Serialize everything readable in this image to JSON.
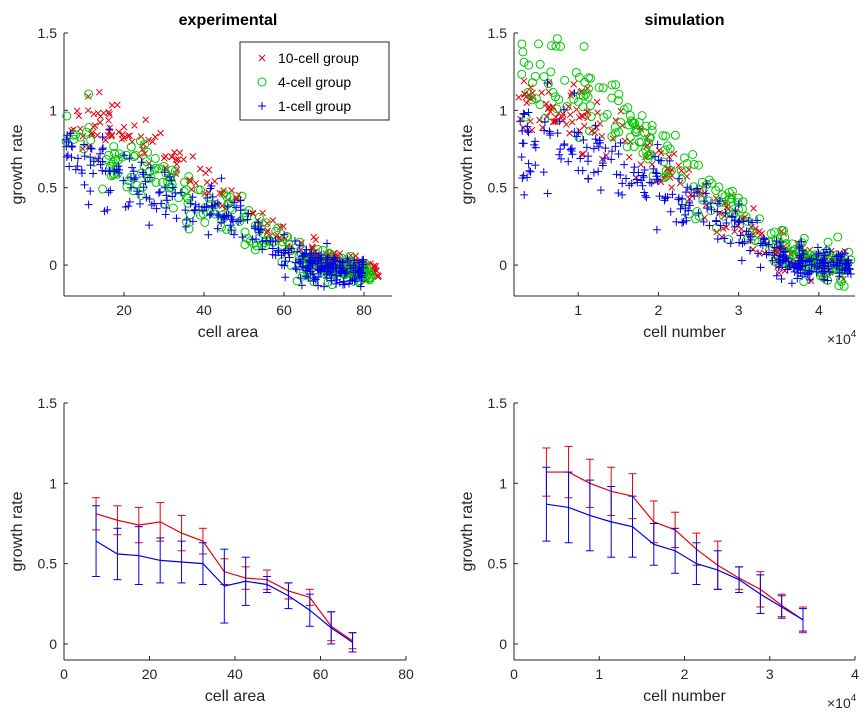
{
  "chart_data": [
    {
      "type": "scatter",
      "title": "experimental",
      "xlabel": "cell area",
      "ylabel": "growth rate",
      "xlim": [
        5,
        87
      ],
      "ylim": [
        -0.2,
        1.5
      ],
      "xticks": [
        20,
        40,
        60,
        80
      ],
      "yticks": [
        0,
        0.5,
        1,
        1.5
      ],
      "legend": "top-right",
      "grid": false,
      "series": [
        {
          "name": "10-cell group",
          "marker": "x",
          "color": "#e8000b",
          "trend": [
            [
              6,
              0.95
            ],
            [
              15,
              0.88
            ],
            [
              25,
              0.8
            ],
            [
              35,
              0.62
            ],
            [
              45,
              0.45
            ],
            [
              55,
              0.28
            ],
            [
              65,
              0.1
            ],
            [
              72,
              0.02
            ],
            [
              80,
              -0.02
            ],
            [
              84,
              -0.05
            ]
          ],
          "spread": 0.09
        },
        {
          "name": "4-cell group",
          "marker": "o",
          "color": "#00c800",
          "trend": [
            [
              5,
              0.95
            ],
            [
              12,
              0.75
            ],
            [
              25,
              0.62
            ],
            [
              35,
              0.45
            ],
            [
              45,
              0.35
            ],
            [
              55,
              0.2
            ],
            [
              65,
              0.02
            ],
            [
              72,
              -0.03
            ],
            [
              80,
              -0.04
            ],
            [
              82,
              -0.05
            ]
          ],
          "spread": 0.12
        },
        {
          "name": "1-cell group",
          "marker": "+",
          "color": "#0000e8",
          "trend": [
            [
              5,
              0.72
            ],
            [
              12,
              0.62
            ],
            [
              22,
              0.55
            ],
            [
              32,
              0.45
            ],
            [
              45,
              0.35
            ],
            [
              55,
              0.18
            ],
            [
              62,
              0.05
            ],
            [
              68,
              -0.02
            ],
            [
              74,
              -0.03
            ],
            [
              80,
              -0.04
            ]
          ],
          "spread": 0.14
        }
      ]
    },
    {
      "type": "scatter",
      "title": "simulation",
      "xlabel": "cell number",
      "ylabel": "growth rate",
      "x_multiplier": "×10^4",
      "xlim": [
        0.2,
        4.45
      ],
      "ylim": [
        -0.2,
        1.5
      ],
      "xticks": [
        1,
        2,
        3,
        4
      ],
      "yticks": [
        0,
        0.5,
        1,
        1.5
      ],
      "grid": false,
      "series": [
        {
          "name": "10-cell group",
          "marker": "x",
          "color": "#e8000b",
          "trend": [
            [
              0.25,
              1.05
            ],
            [
              0.8,
              0.98
            ],
            [
              1.5,
              0.82
            ],
            [
              2.2,
              0.58
            ],
            [
              2.8,
              0.32
            ],
            [
              3.3,
              0.15
            ],
            [
              3.7,
              0.04
            ],
            [
              4.0,
              0.01
            ],
            [
              4.35,
              0.0
            ]
          ],
          "spread": 0.12
        },
        {
          "name": "4-cell group",
          "marker": "o",
          "color": "#00c800",
          "trend": [
            [
              0.25,
              1.3
            ],
            [
              0.7,
              1.25
            ],
            [
              1.2,
              1.05
            ],
            [
              1.8,
              0.85
            ],
            [
              2.4,
              0.58
            ],
            [
              3.0,
              0.3
            ],
            [
              3.5,
              0.1
            ],
            [
              4.0,
              0.01
            ],
            [
              4.4,
              0.0
            ]
          ],
          "spread": 0.16
        },
        {
          "name": "1-cell group",
          "marker": "+",
          "color": "#0000e8",
          "trend": [
            [
              0.25,
              0.85
            ],
            [
              0.8,
              0.78
            ],
            [
              1.4,
              0.65
            ],
            [
              2.0,
              0.5
            ],
            [
              2.6,
              0.35
            ],
            [
              3.2,
              0.18
            ],
            [
              3.6,
              0.02
            ],
            [
              4.0,
              0.0
            ],
            [
              4.4,
              0.0
            ]
          ],
          "spread": 0.15
        }
      ]
    },
    {
      "type": "line",
      "xlabel": "cell area",
      "ylabel": "growth rate",
      "xlim": [
        0,
        80
      ],
      "ylim": [
        -0.1,
        1.5
      ],
      "xticks": [
        0,
        20,
        40,
        60,
        80
      ],
      "yticks": [
        0,
        0.5,
        1,
        1.5
      ],
      "x": [
        7.5,
        12.5,
        17.5,
        22.5,
        27.5,
        32.5,
        37.5,
        42.5,
        47.5,
        52.5,
        57.5,
        62.5,
        67.5
      ],
      "series": [
        {
          "color": "#e8000b",
          "values": [
            0.81,
            0.77,
            0.74,
            0.76,
            0.69,
            0.64,
            0.45,
            0.41,
            0.4,
            0.33,
            0.29,
            0.11,
            0.02
          ],
          "errors": [
            0.1,
            0.09,
            0.11,
            0.12,
            0.11,
            0.08,
            0.08,
            0.07,
            0.06,
            0.05,
            0.05,
            0.09,
            0.05
          ]
        },
        {
          "color": "#0000e8",
          "values": [
            0.64,
            0.56,
            0.55,
            0.52,
            0.51,
            0.5,
            0.36,
            0.39,
            0.37,
            0.3,
            0.21,
            0.1,
            0.01
          ],
          "errors": [
            0.22,
            0.16,
            0.18,
            0.14,
            0.13,
            0.13,
            0.23,
            0.15,
            0.05,
            0.08,
            0.1,
            0.1,
            0.06
          ]
        }
      ]
    },
    {
      "type": "line",
      "xlabel": "cell number",
      "ylabel": "growth rate",
      "x_multiplier": "×10^4",
      "xlim": [
        0,
        4
      ],
      "ylim": [
        -0.1,
        1.5
      ],
      "xticks": [
        0,
        1,
        2,
        3,
        4
      ],
      "yticks": [
        0,
        0.5,
        1,
        1.5
      ],
      "x": [
        0.38,
        0.64,
        0.89,
        1.14,
        1.39,
        1.64,
        1.89,
        2.14,
        2.39,
        2.64,
        2.89,
        3.14,
        3.39
      ],
      "series": [
        {
          "color": "#e8000b",
          "values": [
            1.07,
            1.07,
            1.0,
            0.95,
            0.92,
            0.76,
            0.71,
            0.59,
            0.49,
            0.41,
            0.34,
            0.24,
            0.15
          ],
          "errors": [
            0.15,
            0.16,
            0.15,
            0.15,
            0.14,
            0.13,
            0.11,
            0.1,
            0.15,
            0.07,
            0.11,
            0.07,
            0.08
          ]
        },
        {
          "color": "#0000e8",
          "values": [
            0.87,
            0.85,
            0.8,
            0.76,
            0.73,
            0.62,
            0.58,
            0.5,
            0.46,
            0.4,
            0.31,
            0.23,
            0.15
          ],
          "errors": [
            0.23,
            0.22,
            0.22,
            0.22,
            0.19,
            0.13,
            0.14,
            0.13,
            0.12,
            0.08,
            0.12,
            0.07,
            0.07
          ]
        }
      ]
    }
  ]
}
